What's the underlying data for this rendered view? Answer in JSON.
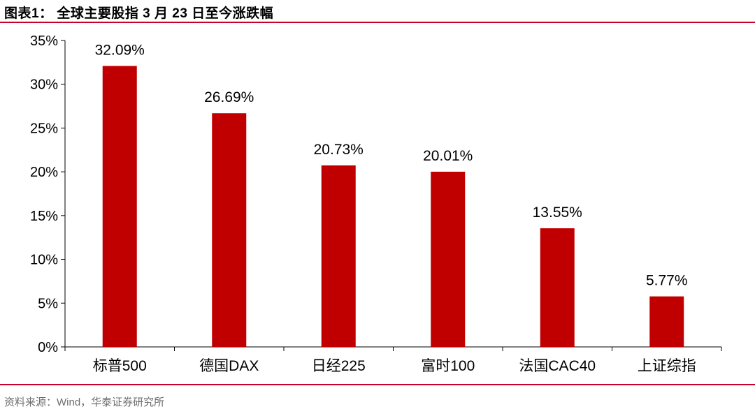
{
  "header": {
    "title": "图表1： 全球主要股指 3 月 23 日至今涨跌幅"
  },
  "footer": {
    "source": "资料来源：Wind，华泰证券研究所"
  },
  "colors": {
    "bar": "#c00000",
    "accent_rule": "#c8002a"
  },
  "chart_data": {
    "type": "bar",
    "title": "",
    "xlabel": "",
    "ylabel": "",
    "categories": [
      "标普500",
      "德国DAX",
      "日经225",
      "富时100",
      "法国CAC40",
      "上证综指"
    ],
    "values": [
      32.09,
      26.69,
      20.73,
      20.01,
      13.55,
      5.77
    ],
    "data_labels": [
      "32.09%",
      "26.69%",
      "20.73%",
      "20.01%",
      "13.55%",
      "5.77%"
    ],
    "ylim": [
      0,
      35
    ],
    "yticks": [
      0,
      5,
      10,
      15,
      20,
      25,
      30,
      35
    ],
    "ytick_labels": [
      "0%",
      "5%",
      "10%",
      "15%",
      "20%",
      "25%",
      "30%",
      "35%"
    ],
    "grid": false,
    "legend": "none"
  }
}
